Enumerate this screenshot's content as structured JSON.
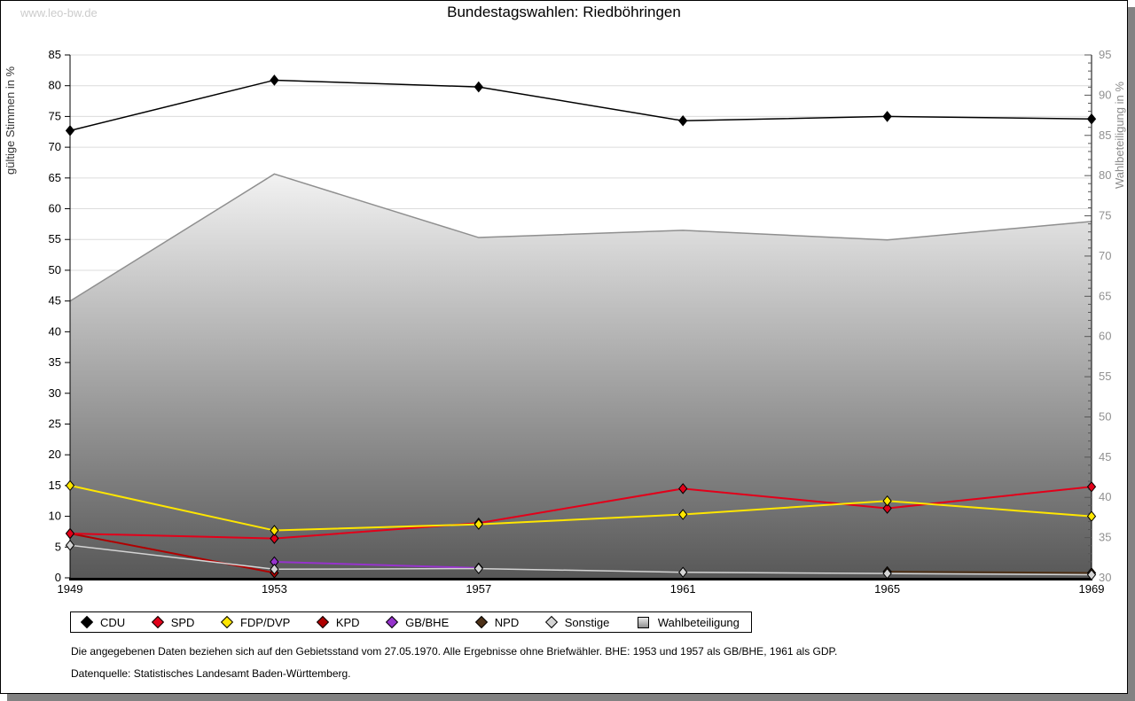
{
  "page": {
    "watermark": "www.leo-bw.de",
    "title": "Bundestagswahlen: Riedböhringen"
  },
  "footer": {
    "line1": "Die angegebenen Daten beziehen sich auf den Gebietsstand vom 27.05.1970. Alle Ergebnisse ohne Briefwähler. BHE: 1953 und 1957 als GB/BHE, 1961 als GDP.",
    "line2": "Datenquelle: Statistisches Landesamt Baden-Württemberg."
  },
  "chart_data": {
    "type": "line",
    "title": "Bundestagswahlen: Riedböhringen",
    "x": [
      1949,
      1953,
      1957,
      1961,
      1965,
      1969
    ],
    "ylabel_left": "gültige Stimmen in %",
    "ylabel_right": "Wahlbeteiligung in %",
    "ylim_left": [
      0,
      85
    ],
    "ytick_step_left": 5,
    "ylim_right": [
      30,
      95
    ],
    "ytick_step_right": 5,
    "grid": true,
    "legend_position": "bottom",
    "area_gradient": [
      "#f2f2f2",
      "#585858"
    ],
    "series": [
      {
        "name": "CDU",
        "axis": "left",
        "type": "line",
        "marker": "diamond",
        "color": "#000000",
        "values": [
          72.7,
          80.9,
          79.8,
          74.3,
          75.0,
          74.6
        ]
      },
      {
        "name": "SPD",
        "axis": "left",
        "type": "line",
        "marker": "diamond",
        "color": "#e2001a",
        "values": [
          7.2,
          6.4,
          8.9,
          14.5,
          11.3,
          14.8
        ]
      },
      {
        "name": "FDP/DVP",
        "axis": "left",
        "type": "line",
        "marker": "diamond",
        "color": "#ffe600",
        "values": [
          15.0,
          7.7,
          8.7,
          10.3,
          12.5,
          10.0
        ]
      },
      {
        "name": "KPD",
        "axis": "left",
        "type": "line",
        "marker": "diamond",
        "color": "#b00000",
        "values": [
          7.2,
          0.8,
          null,
          null,
          null,
          null
        ]
      },
      {
        "name": "GB/BHE",
        "axis": "left",
        "type": "line",
        "marker": "diamond",
        "color": "#9633cc",
        "values": [
          null,
          2.6,
          1.6,
          null,
          null,
          null
        ]
      },
      {
        "name": "NPD",
        "axis": "left",
        "type": "line",
        "marker": "diamond",
        "color": "#4d3118",
        "values": [
          null,
          null,
          null,
          null,
          1.0,
          0.8
        ]
      },
      {
        "name": "Sonstige",
        "axis": "left",
        "type": "line",
        "marker": "diamond",
        "color": "#d4d4d4",
        "values": [
          5.3,
          1.4,
          1.5,
          0.9,
          0.7,
          0.5
        ]
      },
      {
        "name": "Wahlbeteiligung",
        "axis": "right",
        "type": "area",
        "marker": "none",
        "color": "#8f8f8f",
        "values": [
          64.4,
          80.2,
          72.3,
          73.2,
          72.0,
          74.3
        ]
      }
    ]
  }
}
